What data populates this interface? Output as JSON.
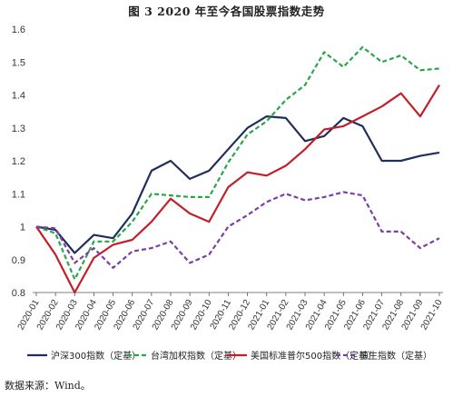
{
  "title": "图 3  2020 年至今各国股票指数走势",
  "source": "数据来源：Wind。",
  "chart_data": {
    "type": "line",
    "title": "图 3  2020 年至今各国股票指数走势",
    "categories": [
      "2020-01",
      "2020-02",
      "2020-03",
      "2020-04",
      "2020-05",
      "2020-06",
      "2020-07",
      "2020-08",
      "2020-09",
      "2020-10",
      "2020-11",
      "2020-12",
      "2021-01",
      "2021-02",
      "2021-03",
      "2021-04",
      "2021-05",
      "2021-06",
      "2021-07",
      "2021-08",
      "2021-09",
      "2021-10"
    ],
    "ylim": [
      0.8,
      1.6
    ],
    "yticks": [
      "0.8",
      "0.9",
      "1",
      "1.1",
      "1.2",
      "1.3",
      "1.4",
      "1.5",
      "1.6"
    ],
    "grid": false,
    "legend_position": "bottom",
    "series": [
      {
        "name": "沪深300指数（定基）",
        "color": "#1f2f5c",
        "dash": "solid",
        "values": [
          1.0,
          0.99,
          0.92,
          0.975,
          0.965,
          1.04,
          1.17,
          1.2,
          1.145,
          1.17,
          1.235,
          1.3,
          1.335,
          1.33,
          1.26,
          1.275,
          1.33,
          1.305,
          1.2,
          1.2,
          1.215,
          1.225
        ]
      },
      {
        "name": "台湾加权指数（定基）",
        "color": "#2aa64a",
        "dash": "dashed",
        "values": [
          1.0,
          0.98,
          0.84,
          0.955,
          0.955,
          1.015,
          1.1,
          1.095,
          1.09,
          1.09,
          1.195,
          1.28,
          1.32,
          1.385,
          1.43,
          1.53,
          1.485,
          1.545,
          1.5,
          1.52,
          1.475,
          1.48
        ]
      },
      {
        "name": "美国标准普尔500指数（定基）",
        "color": "#c41e2a",
        "dash": "solid",
        "values": [
          1.0,
          0.915,
          0.8,
          0.905,
          0.945,
          0.96,
          1.015,
          1.085,
          1.04,
          1.015,
          1.12,
          1.165,
          1.155,
          1.185,
          1.235,
          1.295,
          1.305,
          1.335,
          1.365,
          1.405,
          1.335,
          1.43
        ]
      },
      {
        "name": "恒生指数（定基）",
        "color": "#7b3fa3",
        "dash": "dashed",
        "values": [
          1.0,
          0.995,
          0.89,
          0.935,
          0.875,
          0.925,
          0.935,
          0.955,
          0.89,
          0.915,
          1.0,
          1.035,
          1.075,
          1.1,
          1.08,
          1.09,
          1.105,
          1.095,
          0.985,
          0.985,
          0.935,
          0.965
        ]
      }
    ]
  }
}
